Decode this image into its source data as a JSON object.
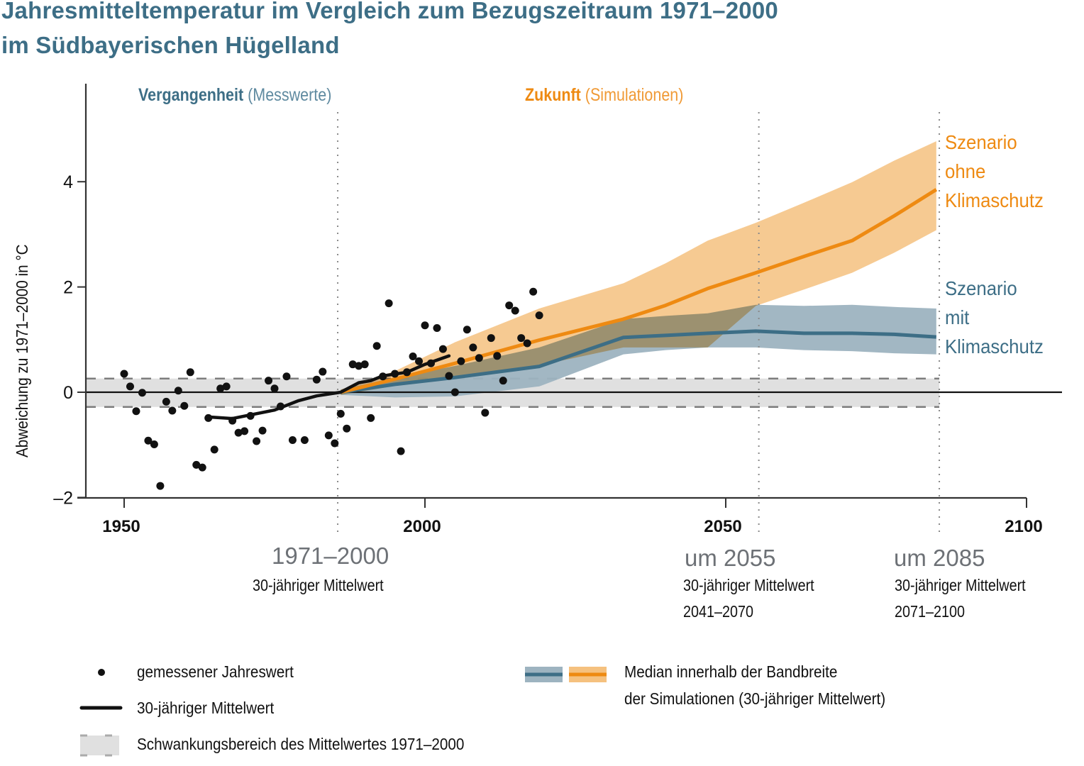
{
  "title_line1": "Jahresmitteltemperatur im Vergleich zum Bezugszeitraum 1971–2000",
  "title_line2": "im Südbayerischen Hügelland",
  "sections": {
    "past_bold": "Vergangenheit",
    "past_normal": "(Messwerte)",
    "future_bold": "Zukunft",
    "future_normal": "(Simulationen)"
  },
  "scenarios": {
    "without": [
      "Szenario",
      "ohne",
      "Klimaschutz"
    ],
    "with": [
      "Szenario",
      "mit",
      "Klimaschutz"
    ]
  },
  "periods": [
    {
      "big": "1971–2000",
      "line1": "30-jähriger Mittelwert",
      "line2": ""
    },
    {
      "big": "um 2055",
      "line1": "30-jähriger Mittelwert",
      "line2": "2041–2070"
    },
    {
      "big": "um 2085",
      "line1": "30-jähriger Mittelwert",
      "line2": "2071–2100"
    }
  ],
  "legend": {
    "dots": "gemessener Jahreswert",
    "line": "30-jähriger Mittelwert",
    "band": "Schwankungsbereich des Mittelwertes 1971–2000",
    "median_line1": "Median innerhalb der Bandbreite",
    "median_line2": "der Simulationen (30-jähriger Mittelwert)"
  },
  "colors": {
    "title": "#3d6e86",
    "orange": "#ee8a12",
    "orange_band": "#f5c17f",
    "blue": "#3d6e86",
    "blue_band": "#9db3c0",
    "ref_band": "#e0e0e0",
    "black": "#111111"
  },
  "chart_data": {
    "type": "scatter",
    "title": "Jahresmitteltemperatur im Vergleich zum Bezugszeitraum 1971–2000 im Südbayerischen Hügelland",
    "xlabel": "",
    "ylabel": "Abweichung zu 1971–2000 in °C",
    "xlim": [
      1944,
      2100
    ],
    "ylim": [
      -2,
      5.8
    ],
    "x_ticks": [
      1950,
      2000,
      2050,
      2100
    ],
    "y_ticks": [
      -2,
      0,
      2,
      4
    ],
    "y_tick_labels": [
      "–2",
      "0",
      "2",
      "4"
    ],
    "reference_band": [
      -0.28,
      0.26
    ],
    "vertical_markers": [
      1985.5,
      2055.5,
      2085.5
    ],
    "annual_values": {
      "name": "gemessener Jahreswert",
      "x": [
        1950,
        1951,
        1952,
        1953,
        1954,
        1955,
        1956,
        1957,
        1958,
        1959,
        1960,
        1961,
        1962,
        1963,
        1964,
        1965,
        1966,
        1967,
        1968,
        1969,
        1970,
        1971,
        1972,
        1973,
        1974,
        1975,
        1976,
        1977,
        1978,
        1980,
        1982,
        1983,
        1984,
        1985,
        1986,
        1987,
        1988,
        1989,
        1990,
        1991,
        1992,
        1993,
        1994,
        1995,
        1996,
        1997,
        1998,
        1999,
        2000,
        2001,
        2002,
        2003,
        2004,
        2005,
        2006,
        2007,
        2008,
        2009,
        2010,
        2011,
        2012,
        2013,
        2014,
        2015,
        2016,
        2017,
        2018,
        2019
      ],
      "y": [
        0.35,
        0.11,
        -0.36,
        -0.01,
        -0.92,
        -0.99,
        -1.78,
        -0.18,
        -0.35,
        0.03,
        -0.26,
        0.38,
        -1.38,
        -1.43,
        -0.49,
        -1.09,
        0.07,
        0.11,
        -0.54,
        -0.77,
        -0.74,
        -0.45,
        -0.93,
        -0.73,
        0.22,
        0.07,
        -0.27,
        0.3,
        -0.91,
        -0.91,
        0.24,
        0.39,
        -0.82,
        -0.97,
        -0.41,
        -0.69,
        0.53,
        0.5,
        0.53,
        -0.49,
        0.88,
        0.3,
        1.69,
        0.35,
        -1.12,
        0.38,
        0.68,
        0.59,
        1.27,
        0.55,
        1.22,
        0.82,
        0.31,
        0.0,
        0.59,
        1.19,
        0.85,
        0.65,
        -0.39,
        1.03,
        0.69,
        0.22,
        1.65,
        1.55,
        1.03,
        0.93,
        1.91,
        1.46
      ]
    },
    "running_mean": {
      "name": "30-jähriger Mittelwert",
      "x": [
        1964,
        1968,
        1971,
        1975,
        1979,
        1982,
        1986,
        1989,
        1991,
        1993,
        1997,
        2000,
        2004
      ],
      "y": [
        -0.47,
        -0.5,
        -0.43,
        -0.34,
        -0.16,
        -0.07,
        0.0,
        0.18,
        0.22,
        0.31,
        0.38,
        0.53,
        0.69
      ]
    },
    "series": [
      {
        "name": "Szenario ohne Klimaschutz",
        "x": [
          1986,
          1995,
          2005,
          2019,
          2033,
          2040,
          2047,
          2055,
          2063,
          2071,
          2078,
          2085
        ],
        "median": [
          0.0,
          0.25,
          0.55,
          0.99,
          1.39,
          1.65,
          1.97,
          2.27,
          2.58,
          2.88,
          3.35,
          3.85
        ],
        "upper": [
          0.05,
          0.4,
          0.95,
          1.59,
          2.07,
          2.45,
          2.88,
          3.22,
          3.6,
          3.99,
          4.4,
          4.77
        ],
        "lower": [
          -0.05,
          0.12,
          0.25,
          0.51,
          0.85,
          0.85,
          0.85,
          1.64,
          1.95,
          2.27,
          2.65,
          3.08
        ]
      },
      {
        "name": "Szenario mit Klimaschutz",
        "x": [
          1986,
          1995,
          2005,
          2019,
          2033,
          2040,
          2047,
          2055,
          2063,
          2071,
          2078,
          2085
        ],
        "median": [
          0.0,
          0.15,
          0.28,
          0.49,
          1.04,
          1.08,
          1.12,
          1.16,
          1.12,
          1.12,
          1.1,
          1.05
        ],
        "upper": [
          0.05,
          0.28,
          0.5,
          0.85,
          1.39,
          1.45,
          1.5,
          1.66,
          1.64,
          1.66,
          1.62,
          1.59
        ],
        "lower": [
          -0.05,
          -0.1,
          -0.08,
          0.11,
          0.72,
          0.8,
          0.85,
          0.85,
          0.8,
          0.78,
          0.74,
          0.72
        ]
      }
    ]
  }
}
